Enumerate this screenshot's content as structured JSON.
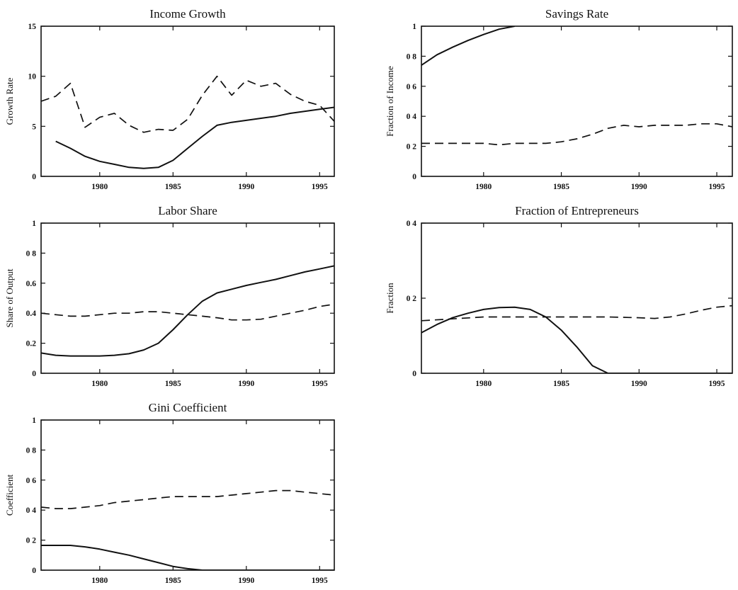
{
  "chart_data": [
    {
      "type": "line",
      "title": "Income Growth",
      "ylabel": "Growth Rate",
      "xlim": [
        1976,
        1996
      ],
      "ylim": [
        0,
        15
      ],
      "xticks": [
        1980,
        1985,
        1990,
        1995
      ],
      "xtick_labels": [
        "1980",
        "1985",
        "1990",
        "1995"
      ],
      "yticks": [
        0,
        5,
        10,
        15
      ],
      "ytick_labels": [
        "0",
        "5",
        "10",
        "15"
      ],
      "series": [
        {
          "style": "solid",
          "x": [
            1977,
            1978,
            1979,
            1980,
            1981,
            1982,
            1983,
            1984,
            1985,
            1986,
            1987,
            1988,
            1989,
            1990,
            1991,
            1992,
            1993,
            1994,
            1995,
            1996
          ],
          "y": [
            3.5,
            2.8,
            2.0,
            1.5,
            1.2,
            0.9,
            0.8,
            0.9,
            1.6,
            2.8,
            4.0,
            5.1,
            5.4,
            5.6,
            5.8,
            6.0,
            6.3,
            6.5,
            6.7,
            6.9
          ]
        },
        {
          "style": "dashed",
          "x": [
            1976,
            1977,
            1978,
            1979,
            1980,
            1981,
            1982,
            1983,
            1984,
            1985,
            1986,
            1987,
            1988,
            1989,
            1990,
            1991,
            1992,
            1993,
            1994,
            1995,
            1996
          ],
          "y": [
            7.5,
            8.0,
            9.3,
            4.9,
            5.9,
            6.3,
            5.1,
            4.4,
            4.7,
            4.6,
            5.7,
            8.1,
            10.0,
            8.1,
            9.6,
            9.0,
            9.3,
            8.2,
            7.5,
            7.1,
            5.5
          ]
        }
      ]
    },
    {
      "type": "line",
      "title": "Savings Rate",
      "ylabel": "Fraction of Income",
      "xlim": [
        1976,
        1996
      ],
      "ylim": [
        0,
        1
      ],
      "xticks": [
        1980,
        1985,
        1990,
        1995
      ],
      "xtick_labels": [
        "1980",
        "1985",
        "1990",
        "1995"
      ],
      "yticks": [
        0,
        0.2,
        0.4,
        0.6,
        0.8,
        1
      ],
      "ytick_labels": [
        "0",
        "0 2",
        "0 4",
        "0 6",
        "0 8",
        "1"
      ],
      "series": [
        {
          "style": "solid",
          "x": [
            1976,
            1977,
            1978,
            1979,
            1980,
            1981,
            1982
          ],
          "y": [
            0.74,
            0.81,
            0.86,
            0.905,
            0.945,
            0.98,
            1.0
          ]
        },
        {
          "style": "dashed",
          "x": [
            1976,
            1977,
            1978,
            1979,
            1980,
            1981,
            1982,
            1983,
            1984,
            1985,
            1986,
            1987,
            1988,
            1989,
            1990,
            1991,
            1992,
            1993,
            1994,
            1995,
            1996
          ],
          "y": [
            0.22,
            0.22,
            0.22,
            0.22,
            0.22,
            0.21,
            0.22,
            0.22,
            0.22,
            0.23,
            0.25,
            0.28,
            0.32,
            0.34,
            0.33,
            0.34,
            0.34,
            0.34,
            0.35,
            0.35,
            0.33
          ]
        }
      ]
    },
    {
      "type": "line",
      "title": "Labor Share",
      "ylabel": "Share of Output",
      "xlim": [
        1976,
        1996
      ],
      "ylim": [
        0,
        1
      ],
      "xticks": [
        1980,
        1985,
        1990,
        1995
      ],
      "xtick_labels": [
        "1980",
        "1985",
        "1990",
        "1995"
      ],
      "yticks": [
        0,
        0.2,
        0.4,
        0.6,
        0.8,
        1
      ],
      "ytick_labels": [
        "0",
        "0.2",
        "0.4",
        "0.6",
        "0 8",
        "1"
      ],
      "series": [
        {
          "style": "solid",
          "x": [
            1976,
            1977,
            1978,
            1979,
            1980,
            1981,
            1982,
            1983,
            1984,
            1985,
            1986,
            1987,
            1988,
            1989,
            1990,
            1991,
            1992,
            1993,
            1994,
            1995,
            1996
          ],
          "y": [
            0.135,
            0.12,
            0.115,
            0.115,
            0.115,
            0.12,
            0.13,
            0.155,
            0.2,
            0.29,
            0.39,
            0.48,
            0.535,
            0.56,
            0.585,
            0.605,
            0.625,
            0.65,
            0.675,
            0.695,
            0.715
          ]
        },
        {
          "style": "dashed",
          "x": [
            1976,
            1977,
            1978,
            1979,
            1980,
            1981,
            1982,
            1983,
            1984,
            1985,
            1986,
            1987,
            1988,
            1989,
            1990,
            1991,
            1992,
            1993,
            1994,
            1995,
            1996
          ],
          "y": [
            0.4,
            0.39,
            0.38,
            0.38,
            0.39,
            0.4,
            0.4,
            0.41,
            0.41,
            0.4,
            0.39,
            0.38,
            0.37,
            0.355,
            0.355,
            0.36,
            0.38,
            0.4,
            0.42,
            0.445,
            0.46
          ]
        }
      ]
    },
    {
      "type": "line",
      "title": "Fraction of Entrepreneurs",
      "ylabel": "Fraction",
      "xlim": [
        1976,
        1996
      ],
      "ylim": [
        0,
        0.4
      ],
      "xticks": [
        1980,
        1985,
        1990,
        1995
      ],
      "xtick_labels": [
        "1980",
        "1985",
        "1990",
        "1995"
      ],
      "yticks": [
        0,
        0.2,
        0.4
      ],
      "ytick_labels": [
        "0",
        "0 2",
        "0 4"
      ],
      "series": [
        {
          "style": "solid",
          "x": [
            1976,
            1977,
            1978,
            1979,
            1980,
            1981,
            1982,
            1983,
            1984,
            1985,
            1986,
            1987,
            1988,
            1989,
            1990,
            1991,
            1992,
            1993,
            1994,
            1995,
            1996
          ],
          "y": [
            0.108,
            0.13,
            0.148,
            0.16,
            0.17,
            0.175,
            0.176,
            0.17,
            0.15,
            0.115,
            0.07,
            0.02,
            0.0,
            0.0,
            0.0,
            0.0,
            0.0,
            0.0,
            0.0,
            0.0,
            0.0
          ]
        },
        {
          "style": "dashed",
          "x": [
            1976,
            1978,
            1980,
            1982,
            1984,
            1986,
            1988,
            1990,
            1991,
            1992,
            1993,
            1994,
            1995,
            1996
          ],
          "y": [
            0.14,
            0.145,
            0.15,
            0.15,
            0.15,
            0.15,
            0.15,
            0.148,
            0.146,
            0.15,
            0.158,
            0.168,
            0.176,
            0.18
          ]
        }
      ]
    },
    {
      "type": "line",
      "title": "Gini Coefficient",
      "ylabel": "Coefficient",
      "xlim": [
        1976,
        1996
      ],
      "ylim": [
        0,
        1
      ],
      "xticks": [
        1980,
        1985,
        1990,
        1995
      ],
      "xtick_labels": [
        "1980",
        "1985",
        "1990",
        "1995"
      ],
      "yticks": [
        0,
        0.2,
        0.4,
        0.6,
        0.8,
        1
      ],
      "ytick_labels": [
        "0",
        "0 2",
        "0 4",
        "0 6",
        "0 8",
        "1"
      ],
      "series": [
        {
          "style": "solid",
          "x": [
            1976,
            1977,
            1978,
            1979,
            1980,
            1981,
            1982,
            1983,
            1984,
            1985,
            1986,
            1987,
            1988,
            1989,
            1990,
            1991,
            1992,
            1993,
            1994,
            1995,
            1996
          ],
          "y": [
            0.165,
            0.165,
            0.165,
            0.155,
            0.14,
            0.12,
            0.1,
            0.075,
            0.05,
            0.025,
            0.01,
            0.0,
            0.0,
            0.0,
            0.0,
            0.0,
            0.0,
            0.0,
            0.0,
            0.0,
            0.0
          ]
        },
        {
          "style": "dashed",
          "x": [
            1976,
            1977,
            1978,
            1979,
            1980,
            1981,
            1982,
            1983,
            1984,
            1985,
            1986,
            1987,
            1988,
            1989,
            1990,
            1991,
            1992,
            1993,
            1994,
            1995,
            1996
          ],
          "y": [
            0.42,
            0.41,
            0.41,
            0.42,
            0.43,
            0.45,
            0.46,
            0.47,
            0.48,
            0.49,
            0.49,
            0.49,
            0.49,
            0.5,
            0.51,
            0.52,
            0.53,
            0.53,
            0.52,
            0.51,
            0.5
          ]
        }
      ]
    }
  ]
}
